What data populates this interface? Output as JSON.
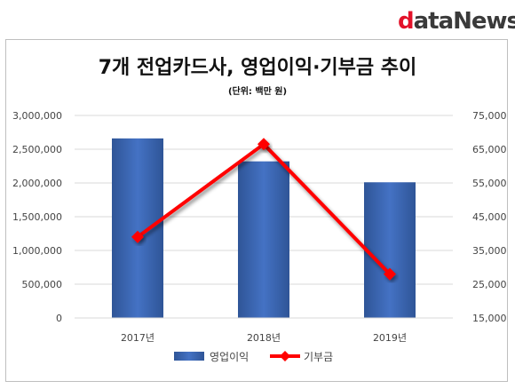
{
  "brand": {
    "prefix": "d",
    "rest": "ataNews"
  },
  "chart_data": {
    "type": "bar",
    "title": "7개 전업카드사, 영업이익·기부금 추이",
    "subtitle": "(단위: 백만 원)",
    "categories": [
      "2017년",
      "2018년",
      "2019년"
    ],
    "series": [
      {
        "name": "영업이익",
        "type": "bar",
        "axis": "left",
        "values": [
          2660000,
          2320000,
          2010000
        ],
        "color": "#4472c4"
      },
      {
        "name": "기부금",
        "type": "line",
        "axis": "right",
        "values": [
          39000,
          66500,
          28000
        ],
        "color": "#ff0000"
      }
    ],
    "y_left": {
      "ylim": [
        0,
        3000000
      ],
      "ticks": [
        "3,000,000",
        "2,500,000",
        "2,000,000",
        "1,500,000",
        "1,000,000",
        "500,000",
        "0"
      ],
      "tick_values": [
        3000000,
        2500000,
        2000000,
        1500000,
        1000000,
        500000,
        0
      ]
    },
    "y_right": {
      "ylim": [
        15000,
        75000
      ],
      "ticks": [
        "75,000",
        "65,000",
        "55,000",
        "45,000",
        "35,000",
        "25,000",
        "15,000"
      ],
      "tick_values": [
        75000,
        65000,
        55000,
        45000,
        35000,
        25000,
        15000
      ]
    },
    "grid": true,
    "legend_position": "bottom"
  }
}
